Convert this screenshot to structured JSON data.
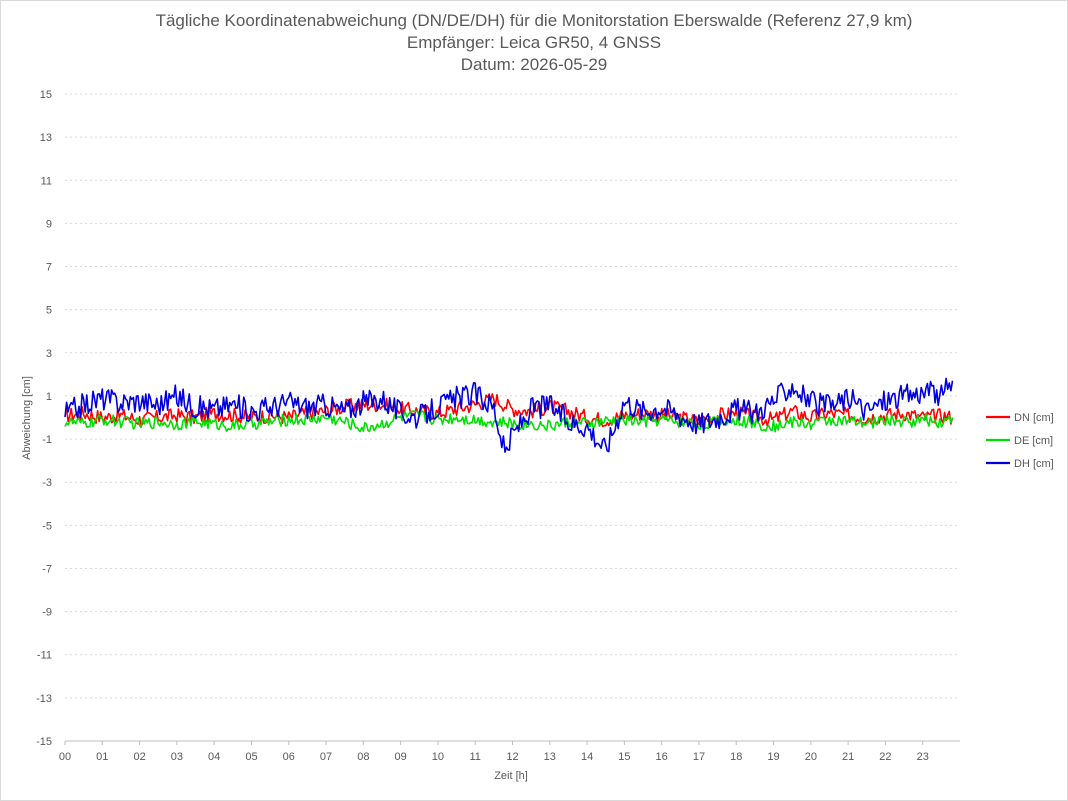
{
  "chart_data": {
    "type": "line",
    "title": "Tägliche Koordinatenabweichung (DN/DE/DH) für die Monitorstation Eberswalde (Referenz 27,9 km)",
    "subtitle_lines": [
      "Empfänger: Leica GR50, 4 GNSS",
      "Datum: 2026-05-29"
    ],
    "xlabel": "Zeit [h]",
    "ylabel": "Abweichung [cm]",
    "xlim": [
      0,
      24
    ],
    "ylim": [
      -15,
      15
    ],
    "x_tick_labels": [
      "00",
      "01",
      "02",
      "03",
      "04",
      "05",
      "06",
      "07",
      "08",
      "09",
      "10",
      "11",
      "12",
      "13",
      "14",
      "15",
      "16",
      "17",
      "18",
      "19",
      "20",
      "21",
      "22",
      "23"
    ],
    "y_ticks": [
      15,
      13,
      11,
      9,
      7,
      5,
      3,
      1,
      -1,
      -3,
      -5,
      -7,
      -9,
      -11,
      -13,
      -15
    ],
    "grid": "horizontal dotted",
    "legend_position": "right",
    "series": [
      {
        "name": "DN [cm]",
        "color": "#ff0000",
        "x": [
          0.0,
          0.5,
          1.0,
          1.5,
          2.0,
          2.5,
          3.0,
          3.5,
          4.0,
          4.5,
          5.0,
          5.5,
          6.0,
          6.5,
          7.0,
          7.5,
          8.0,
          8.5,
          9.0,
          9.5,
          10.0,
          10.5,
          11.0,
          11.5,
          12.0,
          12.5,
          13.0,
          13.5,
          14.0,
          14.5,
          15.0,
          15.5,
          16.0,
          16.5,
          17.0,
          17.5,
          18.0,
          18.5,
          19.0,
          19.5,
          20.0,
          20.5,
          21.0,
          21.5,
          22.0,
          22.5,
          23.0,
          23.5,
          23.8
        ],
        "values": [
          0.1,
          0.2,
          0.0,
          0.1,
          -0.1,
          0.0,
          0.1,
          0.0,
          0.2,
          0.1,
          0.0,
          0.1,
          0.0,
          0.2,
          0.3,
          0.5,
          0.6,
          0.6,
          0.4,
          0.3,
          0.2,
          0.4,
          0.6,
          0.9,
          0.4,
          0.3,
          0.5,
          0.3,
          0.0,
          -0.1,
          0.1,
          0.2,
          0.1,
          0.0,
          -0.2,
          0.1,
          0.2,
          0.0,
          -0.1,
          0.3,
          0.0,
          0.2,
          0.1,
          0.0,
          0.1,
          0.2,
          0.0,
          0.1,
          0.0
        ]
      },
      {
        "name": "DE [cm]",
        "color": "#00e000",
        "x": [
          0.0,
          0.5,
          1.0,
          1.5,
          2.0,
          2.5,
          3.0,
          3.5,
          4.0,
          4.5,
          5.0,
          5.5,
          6.0,
          6.5,
          7.0,
          7.5,
          8.0,
          8.5,
          9.0,
          9.5,
          10.0,
          10.5,
          11.0,
          11.5,
          12.0,
          12.5,
          13.0,
          13.5,
          14.0,
          14.5,
          15.0,
          15.5,
          16.0,
          16.5,
          17.0,
          17.5,
          18.0,
          18.5,
          19.0,
          19.5,
          20.0,
          20.5,
          21.0,
          21.5,
          22.0,
          22.5,
          23.0,
          23.5,
          23.8
        ],
        "values": [
          -0.2,
          -0.3,
          -0.1,
          -0.2,
          -0.3,
          -0.2,
          -0.3,
          -0.2,
          -0.3,
          -0.4,
          -0.3,
          -0.2,
          -0.1,
          -0.1,
          0.0,
          -0.2,
          -0.5,
          -0.3,
          0.0,
          0.1,
          -0.1,
          0.0,
          -0.1,
          -0.2,
          -0.3,
          -0.3,
          -0.4,
          -0.2,
          -0.3,
          -0.2,
          -0.1,
          -0.2,
          -0.1,
          -0.2,
          -0.3,
          -0.2,
          -0.1,
          -0.3,
          -0.4,
          -0.2,
          -0.3,
          -0.1,
          -0.2,
          -0.3,
          -0.1,
          -0.2,
          -0.1,
          -0.2,
          0.0
        ]
      },
      {
        "name": "DH [cm]",
        "color": "#0000dd",
        "x": [
          0.0,
          0.5,
          1.0,
          1.5,
          2.0,
          2.5,
          3.0,
          3.5,
          4.0,
          4.5,
          5.0,
          5.5,
          6.0,
          6.5,
          7.0,
          7.5,
          8.0,
          8.5,
          9.0,
          9.5,
          10.0,
          10.5,
          11.0,
          11.5,
          11.8,
          12.0,
          12.5,
          13.0,
          13.5,
          14.0,
          14.5,
          15.0,
          15.5,
          16.0,
          16.5,
          17.0,
          17.5,
          18.0,
          18.5,
          19.0,
          19.5,
          20.0,
          20.5,
          21.0,
          21.5,
          22.0,
          22.5,
          23.0,
          23.5,
          23.8
        ],
        "values": [
          0.2,
          0.6,
          0.9,
          0.7,
          0.8,
          0.6,
          1.0,
          0.5,
          0.4,
          0.6,
          0.3,
          0.5,
          0.7,
          0.5,
          0.6,
          0.3,
          0.7,
          0.9,
          0.2,
          0.0,
          0.5,
          0.9,
          1.1,
          0.5,
          -1.7,
          -0.8,
          0.4,
          0.6,
          -0.2,
          -0.4,
          -1.5,
          0.8,
          0.3,
          0.5,
          0.1,
          -0.3,
          0.0,
          0.4,
          0.2,
          0.8,
          1.5,
          0.7,
          0.5,
          0.9,
          0.3,
          0.8,
          1.0,
          1.2,
          1.0,
          1.7
        ]
      }
    ]
  }
}
